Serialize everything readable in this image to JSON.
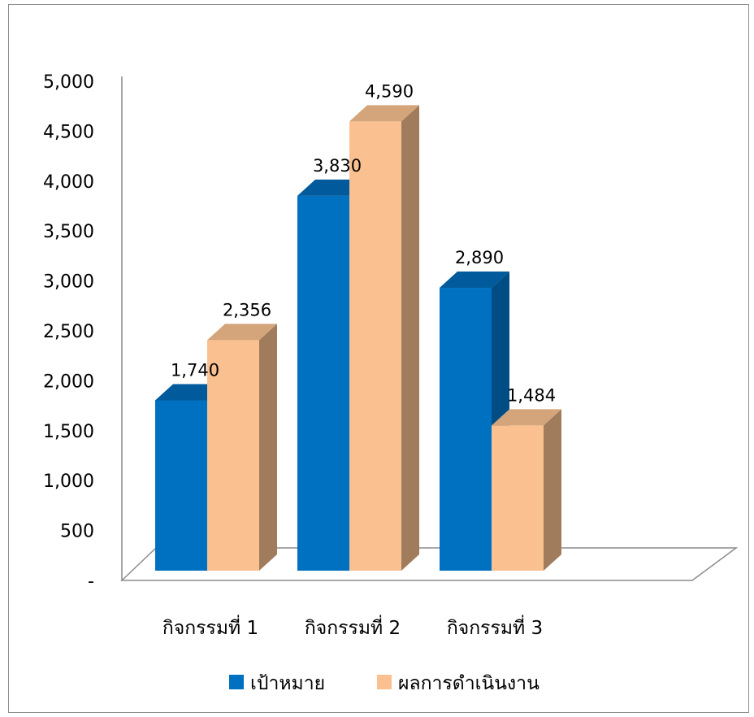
{
  "chart_data": {
    "type": "bar",
    "categories": [
      "กิจกรรมที่ 1",
      "กิจกรรมที่ 2",
      "กิจกรรมที่ 3"
    ],
    "series": [
      {
        "name": "เป้าหมาย",
        "values": [
          1740,
          3830,
          2890
        ],
        "labels": [
          "1,740",
          "3,830",
          "2,890"
        ],
        "color": "#0070C0",
        "side_color": "#004C85",
        "top_color": "#005A9C"
      },
      {
        "name": "ผลการดำเนินงาน",
        "values": [
          2356,
          4590,
          1484
        ],
        "labels": [
          "2,356",
          "4,590",
          "1,484"
        ],
        "color": "#FAC090",
        "side_color": "#A17C5C",
        "top_color": "#D4A47A"
      }
    ],
    "ylim": [
      0,
      5000
    ],
    "yticks": [
      {
        "value": 0,
        "label": "-"
      },
      {
        "value": 500,
        "label": "500"
      },
      {
        "value": 1000,
        "label": "1,000"
      },
      {
        "value": 1500,
        "label": "1,500"
      },
      {
        "value": 2000,
        "label": "2,000"
      },
      {
        "value": 2500,
        "label": "2,500"
      },
      {
        "value": 3000,
        "label": "3,000"
      },
      {
        "value": 3500,
        "label": "3,500"
      },
      {
        "value": 4000,
        "label": "4,000"
      },
      {
        "value": 4500,
        "label": "4,500"
      },
      {
        "value": 5000,
        "label": "5,000"
      }
    ],
    "grid": false,
    "legend_position": "bottom",
    "style": "3d-clustered-column"
  }
}
